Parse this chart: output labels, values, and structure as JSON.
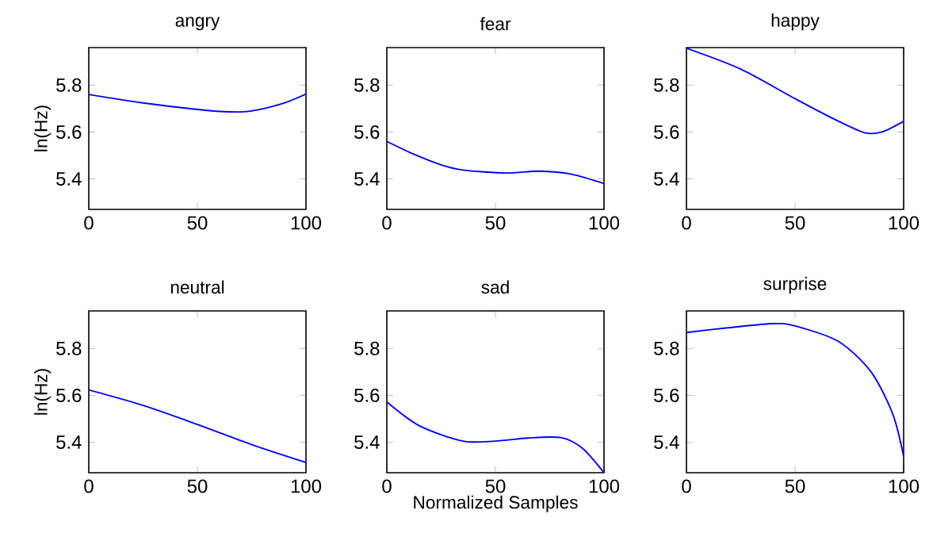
{
  "chart_data": [
    {
      "type": "line",
      "title": "angry",
      "ylabel": "ln(Hz)",
      "x": [
        0,
        25,
        50,
        65,
        75,
        90,
        100
      ],
      "series": [
        {
          "color": "#0000ff",
          "values": [
            5.76,
            5.724,
            5.696,
            5.686,
            5.69,
            5.724,
            5.762
          ]
        }
      ],
      "xlim": [
        0,
        100
      ],
      "xticks": [
        0,
        50,
        100
      ],
      "ylim": [
        5.27,
        5.96
      ],
      "yticks": [
        5.4,
        5.6,
        5.8
      ]
    },
    {
      "type": "line",
      "title": "fear",
      "x": [
        0,
        12,
        25,
        35,
        55,
        70,
        85,
        100
      ],
      "series": [
        {
          "color": "#0000ff",
          "values": [
            5.56,
            5.507,
            5.46,
            5.438,
            5.425,
            5.433,
            5.42,
            5.38
          ]
        }
      ],
      "xlim": [
        0,
        100
      ],
      "xticks": [
        0,
        50,
        100
      ],
      "ylim": [
        5.27,
        5.96
      ],
      "yticks": [
        5.4,
        5.6,
        5.8
      ]
    },
    {
      "type": "line",
      "title": "happy",
      "x": [
        0,
        25,
        50,
        70,
        82,
        90,
        100
      ],
      "series": [
        {
          "color": "#0000ff",
          "values": [
            5.957,
            5.868,
            5.742,
            5.646,
            5.597,
            5.6,
            5.646
          ]
        }
      ],
      "xlim": [
        0,
        100
      ],
      "xticks": [
        0,
        50,
        100
      ],
      "ylim": [
        5.27,
        5.96
      ],
      "yticks": [
        5.4,
        5.6,
        5.8
      ]
    },
    {
      "type": "line",
      "title": "neutral",
      "ylabel": "ln(Hz)",
      "x": [
        0,
        25,
        50,
        75,
        100
      ],
      "series": [
        {
          "color": "#0000ff",
          "values": [
            5.623,
            5.557,
            5.476,
            5.39,
            5.314
          ]
        }
      ],
      "xlim": [
        0,
        100
      ],
      "xticks": [
        0,
        50,
        100
      ],
      "ylim": [
        5.27,
        5.96
      ],
      "yticks": [
        5.4,
        5.6,
        5.8
      ]
    },
    {
      "type": "line",
      "title": "sad",
      "xlabel": "Normalized Samples",
      "x": [
        0,
        15,
        35,
        50,
        65,
        80,
        90,
        100
      ],
      "series": [
        {
          "color": "#0000ff",
          "values": [
            5.572,
            5.47,
            5.405,
            5.405,
            5.418,
            5.42,
            5.375,
            5.27
          ]
        }
      ],
      "xlim": [
        0,
        100
      ],
      "xticks": [
        0,
        50,
        100
      ],
      "ylim": [
        5.27,
        5.96
      ],
      "yticks": [
        5.4,
        5.6,
        5.8
      ]
    },
    {
      "type": "line",
      "title": "surprise",
      "x": [
        0,
        20,
        40,
        50,
        70,
        85,
        95,
        100
      ],
      "series": [
        {
          "color": "#0000ff",
          "values": [
            5.868,
            5.889,
            5.906,
            5.896,
            5.83,
            5.7,
            5.52,
            5.34
          ]
        }
      ],
      "xlim": [
        0,
        100
      ],
      "xticks": [
        0,
        50,
        100
      ],
      "ylim": [
        5.27,
        5.96
      ],
      "yticks": [
        5.4,
        5.6,
        5.8
      ]
    }
  ]
}
